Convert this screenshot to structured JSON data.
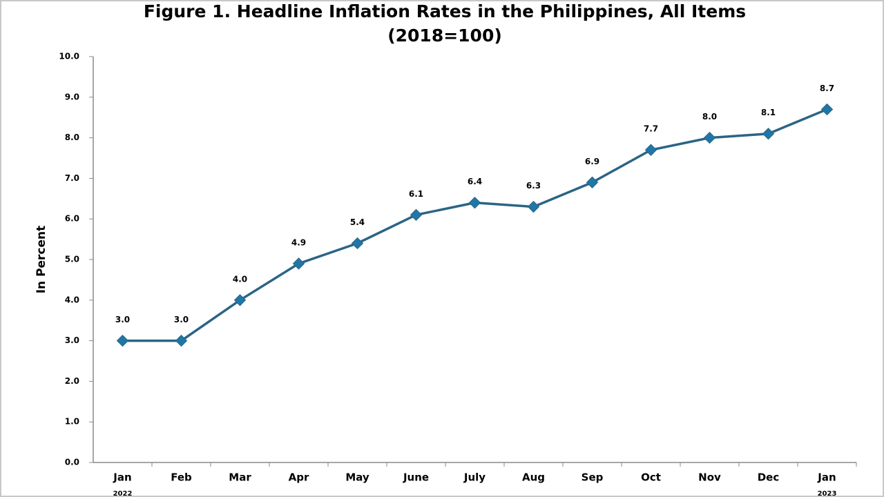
{
  "chart_data": {
    "type": "line",
    "title": "Figure 1. Headline Inflation Rates in the Philippines, All Items",
    "subtitle": "(2018=100)",
    "y_label": "In Percent",
    "categories": [
      "Jan",
      "Feb",
      "Mar",
      "Apr",
      "May",
      "June",
      "July",
      "Aug",
      "Sep",
      "Oct",
      "Nov",
      "Dec",
      "Jan"
    ],
    "category_years": [
      "2022",
      null,
      null,
      null,
      null,
      null,
      null,
      null,
      null,
      null,
      null,
      null,
      "2023"
    ],
    "values": [
      3.0,
      3.0,
      4.0,
      4.9,
      5.4,
      6.1,
      6.4,
      6.3,
      6.9,
      7.7,
      8.0,
      8.1,
      8.7
    ],
    "value_labels": [
      "3.0",
      "3.0",
      "4.0",
      "4.9",
      "5.4",
      "6.1",
      "6.4",
      "6.3",
      "6.9",
      "7.7",
      "8.0",
      "8.1",
      "8.7"
    ],
    "color": "#2b6485",
    "marker_color": "#1f77a8",
    "ylim": [
      0,
      10
    ],
    "yticks": [
      {
        "value": 0,
        "label": "0.0"
      },
      {
        "value": 1,
        "label": "1.0"
      },
      {
        "value": 2,
        "label": "2.0"
      },
      {
        "value": 3,
        "label": "3.0"
      },
      {
        "value": 4,
        "label": "4.0"
      },
      {
        "value": 5,
        "label": "5.0"
      },
      {
        "value": 6,
        "label": "6.0"
      },
      {
        "value": 7,
        "label": "7.0"
      },
      {
        "value": 8,
        "label": "8.0"
      },
      {
        "value": 9,
        "label": "9.0"
      },
      {
        "value": 10,
        "label": "10.0"
      }
    ],
    "grid": false
  }
}
